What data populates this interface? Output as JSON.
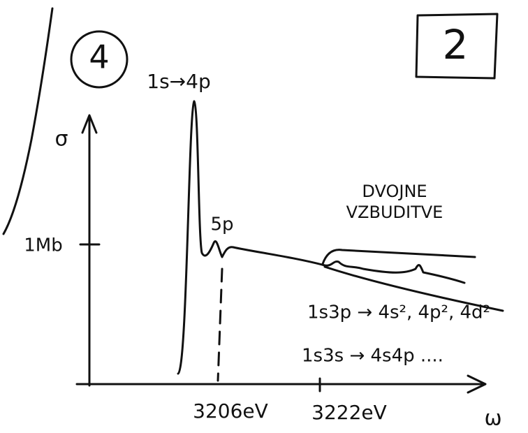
{
  "corner_labels": {
    "circled": "4",
    "boxed": "2"
  },
  "axes": {
    "y_label": "σ",
    "x_label": "ω",
    "y_tick": "1Mb",
    "x_ticks": [
      "3206eV",
      "3222eV"
    ]
  },
  "peaks": {
    "main": "1s→4p",
    "second": "5p"
  },
  "region": {
    "title_line1": "DVOJNE",
    "title_line2": "VZBUDITVE",
    "transitions": [
      "1s3p → 4s², 4p², 4d²",
      "1s3s → 4s4p ...."
    ]
  }
}
